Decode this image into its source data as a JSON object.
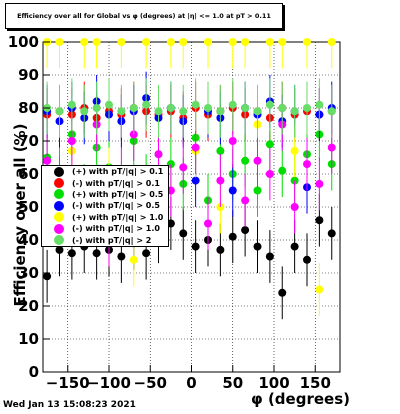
{
  "chart_data": {
    "type": "scatter",
    "title": "Efficiency over all for Global vs φ (degrees) at |η| <= 1.0 at pT > 0.11",
    "xlabel": "φ (degrees)",
    "ylabel": "Efficiency over all (%)",
    "xlim": [
      -180,
      180
    ],
    "ylim": [
      0,
      100
    ],
    "x_ticks": [
      -150,
      -100,
      -50,
      0,
      50,
      100,
      150
    ],
    "y_ticks": [
      0,
      10,
      20,
      30,
      40,
      50,
      60,
      70,
      80,
      90,
      100
    ],
    "grid": true,
    "legend_position": "lower-left",
    "timestamp": "Wed Jan 13 15:08:23 2021",
    "series": [
      {
        "name": "(+) with pT/|q| > 0.1",
        "color": "#000000",
        "x": [
          -175,
          -160,
          -145,
          -130,
          -115,
          -100,
          -85,
          -70,
          -55,
          -40,
          -25,
          -10,
          5,
          20,
          35,
          50,
          65,
          80,
          95,
          110,
          125,
          140,
          155,
          170
        ],
        "y": [
          29,
          37,
          36,
          38,
          36,
          37,
          35,
          39,
          36,
          41,
          45,
          42,
          38,
          40,
          37,
          41,
          43,
          38,
          35,
          24,
          38,
          34,
          46,
          42
        ]
      },
      {
        "name": "(-) with pT/|q| > 0.1",
        "color": "#ff0000",
        "x": [
          -175,
          -160,
          -145,
          -130,
          -115,
          -100,
          -85,
          -70,
          -55,
          -40,
          -25,
          -10,
          5,
          20,
          35,
          50,
          65,
          80,
          95,
          110,
          125,
          140,
          155,
          170
        ],
        "y": [
          78,
          79,
          78,
          80,
          77,
          79,
          78,
          80,
          79,
          78,
          79,
          77,
          80,
          78,
          79,
          80,
          78,
          79,
          77,
          80,
          78,
          79,
          78,
          79
        ]
      },
      {
        "name": "(+) with pT/|q| > 0.5",
        "color": "#00dd00",
        "x": [
          -175,
          -160,
          -145,
          -130,
          -115,
          -100,
          -85,
          -70,
          -55,
          -40,
          -25,
          -10,
          5,
          20,
          35,
          50,
          65,
          80,
          95,
          110,
          125,
          140,
          155,
          170
        ],
        "y": [
          65,
          60,
          72,
          55,
          68,
          62,
          50,
          70,
          58,
          66,
          63,
          57,
          71,
          52,
          67,
          60,
          64,
          55,
          69,
          61,
          58,
          66,
          72,
          63
        ]
      },
      {
        "name": "(-) with pT/|q| > 0.5",
        "color": "#0000ff",
        "x": [
          -175,
          -160,
          -145,
          -130,
          -115,
          -100,
          -85,
          -70,
          -55,
          -40,
          -25,
          -10,
          5,
          20,
          35,
          50,
          65,
          80,
          95,
          110,
          125,
          140,
          155,
          170
        ],
        "y": [
          79,
          76,
          80,
          77,
          82,
          78,
          76,
          79,
          83,
          77,
          80,
          76,
          58,
          79,
          77,
          55,
          80,
          78,
          82,
          76,
          79,
          56,
          78,
          80
        ]
      },
      {
        "name": "(+) with pT/|q| > 1.0",
        "color": "#ffff00",
        "x": [
          -175,
          -160,
          -145,
          -130,
          -115,
          -100,
          -85,
          -70,
          -55,
          -40,
          -25,
          -10,
          5,
          20,
          35,
          50,
          65,
          80,
          95,
          110,
          125,
          140,
          155,
          170
        ],
        "y": [
          100,
          100,
          67,
          100,
          100,
          60,
          100,
          34,
          100,
          50,
          100,
          100,
          67,
          100,
          50,
          100,
          100,
          75,
          100,
          100,
          67,
          100,
          25,
          100
        ]
      },
      {
        "name": "(-) with pT/|q| > 1.0",
        "color": "#ff00ff",
        "x": [
          -175,
          -160,
          -145,
          -130,
          -115,
          -100,
          -85,
          -70,
          -55,
          -40,
          -25,
          -10,
          5,
          20,
          35,
          50,
          65,
          80,
          95,
          110,
          125,
          140,
          155,
          170
        ],
        "y": [
          64,
          57,
          70,
          50,
          75,
          40,
          60,
          72,
          48,
          66,
          55,
          62,
          68,
          45,
          58,
          70,
          52,
          64,
          60,
          75,
          50,
          63,
          57,
          68
        ]
      },
      {
        "name": "(-) with pT/|q| > 2",
        "color": "#66dd66",
        "x": [
          -175,
          -160,
          -145,
          -130,
          -115,
          -100,
          -85,
          -70,
          -55,
          -40,
          -25,
          -10,
          5,
          20,
          35,
          50,
          65,
          80,
          95,
          110,
          125,
          140,
          155,
          170
        ],
        "y": [
          80,
          79,
          81,
          79,
          80,
          81,
          79,
          80,
          81,
          79,
          80,
          79,
          81,
          80,
          79,
          81,
          80,
          79,
          81,
          80,
          79,
          80,
          81,
          79
        ]
      }
    ]
  }
}
